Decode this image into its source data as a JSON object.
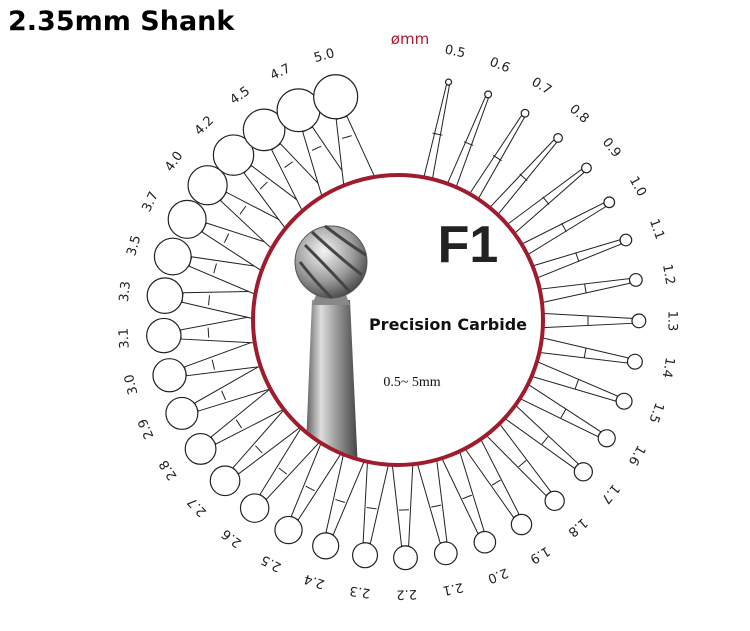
{
  "title": "2.35mm Shank",
  "unit_label": "ømm",
  "center": {
    "model": "F1",
    "subtitle": "Precision Carbide",
    "range": "0.5~ 5mm"
  },
  "sizes": [
    "0.5",
    "0.6",
    "0.7",
    "0.8",
    "0.9",
    "1.0",
    "1.1",
    "1.2",
    "1.3",
    "1.4",
    "1.5",
    "1.6",
    "1.7",
    "1.8",
    "1.9",
    "2.0",
    "2.1",
    "2.2",
    "2.3",
    "2.4",
    "2.5",
    "2.6",
    "2.7",
    "2.8",
    "2.9",
    "3.0",
    "3.1",
    "3.3",
    "3.5",
    "3.7",
    "4.0",
    "4.2",
    "4.5",
    "4.7",
    "5.0"
  ]
}
